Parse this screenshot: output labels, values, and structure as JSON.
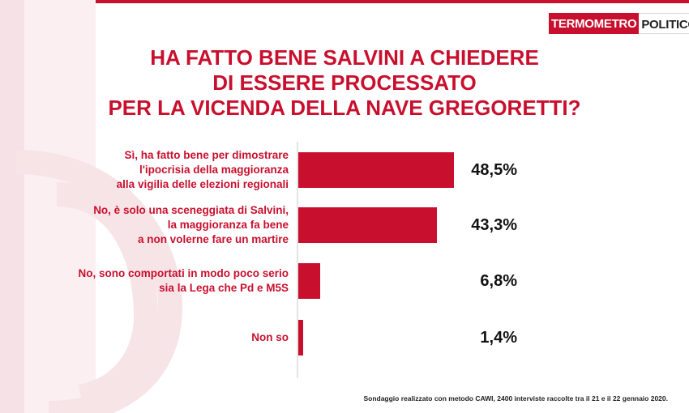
{
  "brand": {
    "part1": "TERMOMETRO",
    "part2": "POLITICO"
  },
  "title_lines": [
    "HA FATTO BENE SALVINI A CHIEDERE",
    "DI ESSERE PROCESSATO",
    "PER LA VICENDA DELLA NAVE GREGORETTI?"
  ],
  "footnote": "Sondaggio realizzato con metodo CAWI, 2400 interviste raccolte tra il 21 e il 22 gennaio 2020.",
  "colors": {
    "accent": "#c8102e",
    "text": "#111111"
  },
  "chart_data": {
    "type": "bar",
    "orientation": "horizontal",
    "title": "HA FATTO BENE SALVINI A CHIEDERE DI ESSERE PROCESSATO PER LA VICENDA DELLA NAVE GREGORETTI?",
    "categories": [
      [
        "Sì, ha fatto bene per dimostrare",
        "l'ipocrisia della maggioranza",
        "alla vigilia delle elezioni regionali"
      ],
      [
        "No, è solo una sceneggiata di Salvini,",
        "la maggioranza fa bene",
        "a non volerne fare un martire"
      ],
      [
        "No, sono comportati in modo poco serio",
        "sia la Lega che Pd e M5S"
      ],
      [
        "Non so"
      ]
    ],
    "values": [
      48.5,
      43.3,
      6.8,
      1.4
    ],
    "value_labels": [
      "48,5%",
      "43,3%",
      "6,8%",
      "1,4%"
    ],
    "xlim": [
      0,
      100
    ],
    "grid": false,
    "legend": "none"
  }
}
